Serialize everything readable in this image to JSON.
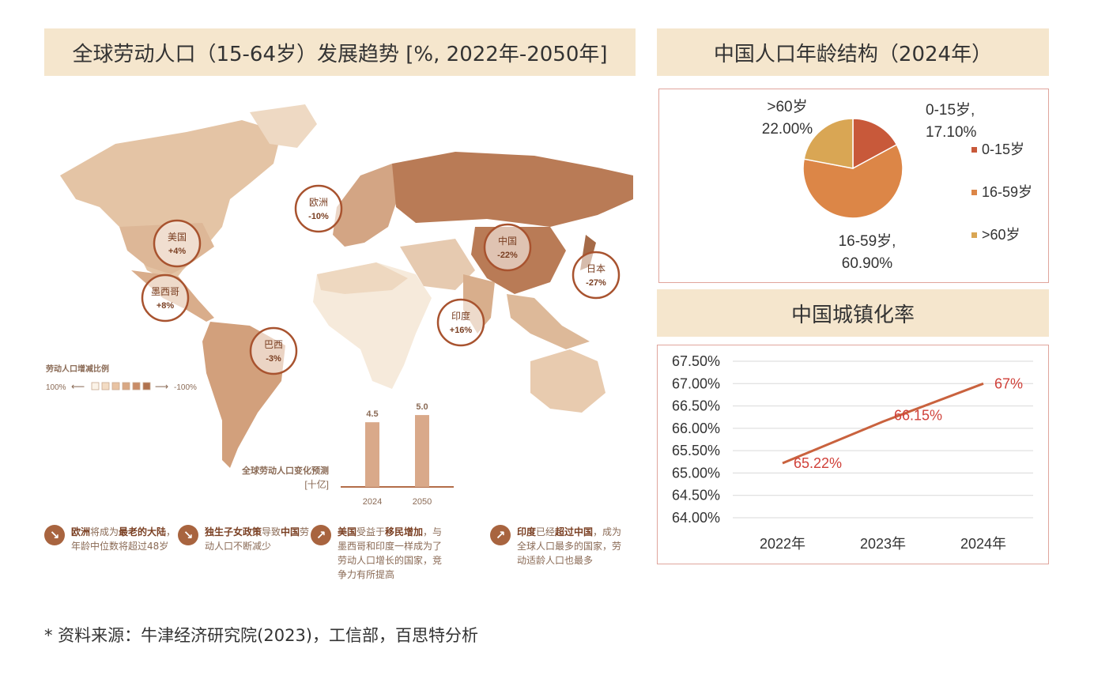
{
  "titles": {
    "map": "全球劳动人口（15-64岁）发展趋势 [%, 2022年-2050年]",
    "pie": "中国人口年龄结构（2024年）",
    "line": "中国城镇化率"
  },
  "map": {
    "countries": [
      {
        "name": "美国",
        "change": "+4%"
      },
      {
        "name": "墨西哥",
        "change": "+8%"
      },
      {
        "name": "巴西",
        "change": "-3%"
      },
      {
        "name": "欧洲",
        "change": "-10%"
      },
      {
        "name": "中国",
        "change": "-22%"
      },
      {
        "name": "日本",
        "change": "-27%"
      },
      {
        "name": "印度",
        "change": "+16%"
      }
    ],
    "legend_title": "劳动人口增减比例",
    "legend_left": "100%",
    "legend_right": "-100%",
    "legend_colors": [
      "#fbf3e8",
      "#f3dcc4",
      "#e8c3a3",
      "#d9a884",
      "#c98c67",
      "#b0724e"
    ],
    "forecast_title": "全球劳动人口变化预测",
    "forecast_unit": "[十亿]"
  },
  "notes": [
    {
      "icon": "↘",
      "b1": "欧洲",
      "t1": "将成为",
      "b2": "最老的大陆",
      "t2": "，年龄中位数将超过48岁"
    },
    {
      "icon": "↘",
      "b1": "独生子女政策",
      "t1": "导致",
      "b2": "中国",
      "t2": "劳动人口不断减少"
    },
    {
      "icon": "↗",
      "b1": "美国",
      "t1": "受益于",
      "b2": "移民增加",
      "t2": "，与墨西哥和印度一样成为了劳动人口增长的国家，竞争力有所提高"
    },
    {
      "icon": "↗",
      "b1": "印度",
      "t1": "已经",
      "b2": "超过中国",
      "t2": "，成为全球人口最多的国家，劳动适龄人口也最多"
    }
  ],
  "chart_data": [
    {
      "type": "bar",
      "title": "全球劳动人口变化预测",
      "ylabel": "[十亿]",
      "categories": [
        "2024",
        "2050"
      ],
      "values": [
        4.5,
        5.0
      ],
      "value_labels": [
        "4.5",
        "5.0"
      ],
      "ylim": [
        0,
        5.5
      ],
      "color": "#d9a98a"
    },
    {
      "type": "pie",
      "title": "中国人口年龄结构（2024年）",
      "categories": [
        "0-15岁",
        "16-59岁",
        ">60岁"
      ],
      "values": [
        17.1,
        60.9,
        22.0
      ],
      "data_labels": [
        "0-15岁,\n17.10%",
        "16-59岁,\n60.90%",
        ">60岁\n22.00%"
      ],
      "colors": [
        "#c8593a",
        "#dc8647",
        "#d9a654"
      ],
      "legend": "right"
    },
    {
      "type": "line",
      "title": "中国城镇化率",
      "categories": [
        "2022年",
        "2023年",
        "2024年"
      ],
      "values": [
        65.22,
        66.15,
        67.0
      ],
      "data_labels": [
        "65.22%",
        "66.15%",
        "67%"
      ],
      "ylim": [
        64.0,
        67.5
      ],
      "yticks": [
        "67.50%",
        "67.00%",
        "66.50%",
        "66.00%",
        "65.50%",
        "65.00%",
        "64.50%",
        "64.00%"
      ],
      "grid": true,
      "line_color": "#c9623e",
      "label_color": "#d0413a"
    }
  ],
  "source": "*  资料来源：牛津经济研究院(2023)，工信部，百思特分析"
}
